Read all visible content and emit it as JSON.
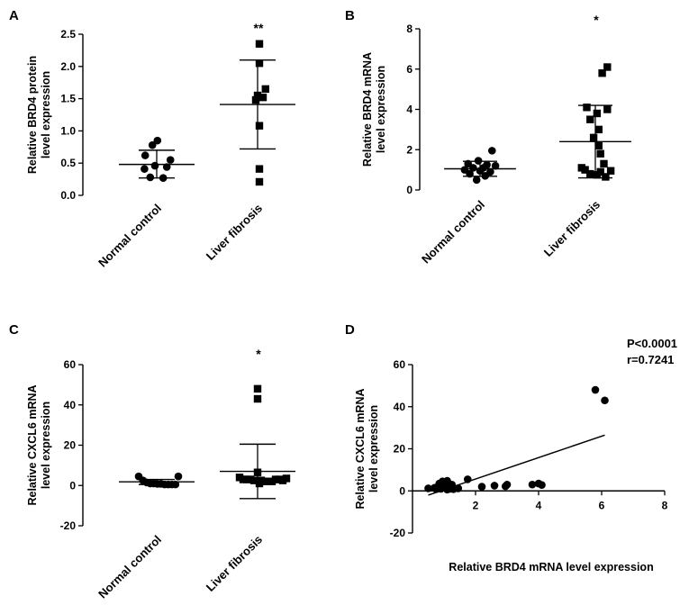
{
  "chart_data": [
    {
      "type": "scatter",
      "panel": "A",
      "title": "",
      "ylabel_lines": [
        "Relative BRD4 protein",
        "level expression"
      ],
      "categories": [
        "Normal control",
        "Liver fibrosis"
      ],
      "ylim": [
        0,
        2.5
      ],
      "yticks": [
        0.0,
        0.5,
        1.0,
        1.5,
        2.0,
        2.5
      ],
      "ytick_labels": [
        "0.0",
        "0.5",
        "1.0",
        "1.5",
        "2.0",
        "2.5"
      ],
      "series": [
        {
          "name": "Normal control",
          "marker": "circle",
          "values": [
            0.85,
            0.78,
            0.62,
            0.55,
            0.46,
            0.44,
            0.41,
            0.28,
            0.27
          ],
          "offsets": [
            0.02,
            -0.12,
            -0.32,
            0.38,
            -0.05,
            0.28,
            -0.34,
            -0.18,
            0.18
          ],
          "mean": 0.48,
          "sd_upper": 0.7,
          "sd_lower": 0.27
        },
        {
          "name": "Liver fibrosis",
          "marker": "square",
          "values": [
            2.35,
            2.05,
            1.65,
            1.55,
            1.52,
            1.48,
            1.08,
            0.41,
            0.21
          ],
          "offsets": [
            0.05,
            0.05,
            0.22,
            0.0,
            0.15,
            -0.05,
            0.05,
            0.05,
            0.05
          ],
          "mean": 1.41,
          "sd_upper": 2.1,
          "sd_lower": 0.72
        }
      ],
      "significance": "**"
    },
    {
      "type": "scatter",
      "panel": "B",
      "title": "",
      "ylabel_lines": [
        "Relative BRD4 mRNA",
        "level expression"
      ],
      "categories": [
        "Normal control",
        "Liver fibrosis"
      ],
      "ylim": [
        0,
        8
      ],
      "yticks": [
        0,
        2,
        4,
        6,
        8
      ],
      "ytick_labels": [
        "0",
        "2",
        "4",
        "6",
        "8"
      ],
      "series": [
        {
          "name": "Normal control",
          "marker": "circle",
          "values": [
            1.95,
            1.45,
            1.3,
            1.25,
            1.2,
            1.1,
            1.1,
            1.0,
            0.95,
            0.9,
            0.8,
            0.7,
            0.5
          ],
          "offsets": [
            0.35,
            -0.05,
            -0.35,
            0.2,
            0.45,
            -0.2,
            0.1,
            -0.45,
            0.0,
            0.3,
            -0.3,
            0.15,
            -0.1
          ],
          "mean": 1.05,
          "sd_upper": 1.42,
          "sd_lower": 0.68
        },
        {
          "name": "Liver fibrosis",
          "marker": "square",
          "values": [
            6.1,
            5.8,
            4.1,
            4.0,
            3.8,
            3.5,
            3.0,
            2.6,
            2.2,
            1.8,
            1.3,
            1.1,
            1.0,
            0.95,
            0.9,
            0.8,
            0.75,
            0.65
          ],
          "offsets": [
            0.35,
            0.2,
            -0.25,
            0.35,
            0.05,
            -0.15,
            0.1,
            -0.05,
            0.1,
            0.15,
            0.25,
            -0.4,
            -0.3,
            0.45,
            0.15,
            -0.15,
            0.05,
            0.3
          ],
          "mean": 2.4,
          "sd_upper": 4.2,
          "sd_lower": 0.6
        }
      ],
      "significance": "*"
    },
    {
      "type": "scatter",
      "panel": "C",
      "title": "",
      "ylabel_lines": [
        "Relative CXCL6 mRNA",
        "level expression"
      ],
      "categories": [
        "Normal control",
        "Liver fibrosis"
      ],
      "ylim": [
        -20,
        60
      ],
      "yticks": [
        -20,
        0,
        20,
        40,
        60
      ],
      "ytick_labels": [
        "-20",
        "0",
        "20",
        "40",
        "60"
      ],
      "series": [
        {
          "name": "Normal control",
          "marker": "circle",
          "values": [
            4.5,
            2.5,
            1.5,
            1.0,
            1.0,
            0.8,
            0.8,
            0.5,
            0.5,
            0.5,
            0.5,
            4.5
          ],
          "offsets": [
            -0.5,
            -0.38,
            -0.28,
            -0.18,
            -0.08,
            0.02,
            0.12,
            0.22,
            0.32,
            0.42,
            0.52,
            0.6
          ],
          "mean": 1.8,
          "sd_upper": 3.0,
          "sd_lower": 0.5
        },
        {
          "name": "Liver fibrosis",
          "marker": "square",
          "values": [
            48,
            43,
            6.5,
            4,
            3,
            3,
            3,
            2.5,
            2.5,
            2,
            2,
            2,
            3,
            3,
            2.5,
            3.5,
            1
          ],
          "offsets": [
            0.0,
            0.0,
            0.0,
            -0.5,
            -0.4,
            -0.3,
            -0.2,
            -0.1,
            0.1,
            0.2,
            0.3,
            0.4,
            0.5,
            0.6,
            0.7,
            0.8,
            0.05
          ],
          "mean": 7.0,
          "sd_upper": 20.5,
          "sd_lower": -6.5
        }
      ],
      "significance": "*"
    },
    {
      "type": "scatter",
      "panel": "D",
      "title": "",
      "xlabel": "Relative BRD4 mRNA level expression",
      "ylabel_lines": [
        "Relative CXCL6 mRNA",
        "level expression"
      ],
      "xlim": [
        0,
        8
      ],
      "ylim": [
        -20,
        60
      ],
      "xticks": [
        2,
        4,
        6,
        8
      ],
      "xtick_labels": [
        "2",
        "4",
        "6",
        "8"
      ],
      "yticks": [
        -20,
        0,
        20,
        40,
        60
      ],
      "ytick_labels": [
        "-20",
        "0",
        "20",
        "40",
        "60"
      ],
      "points": [
        [
          0.5,
          1.2
        ],
        [
          0.7,
          1.5
        ],
        [
          0.75,
          0.8
        ],
        [
          0.8,
          2.0
        ],
        [
          0.85,
          3.5
        ],
        [
          0.9,
          1.0
        ],
        [
          0.95,
          4.5
        ],
        [
          1.0,
          2.5
        ],
        [
          1.05,
          1.5
        ],
        [
          1.1,
          4.8
        ],
        [
          1.1,
          0.6
        ],
        [
          1.15,
          2.0
        ],
        [
          1.2,
          1.0
        ],
        [
          1.25,
          3.0
        ],
        [
          1.3,
          0.8
        ],
        [
          1.45,
          1.2
        ],
        [
          1.75,
          5.5
        ],
        [
          2.2,
          2.0
        ],
        [
          2.6,
          2.5
        ],
        [
          2.95,
          2.2
        ],
        [
          3.0,
          3.0
        ],
        [
          3.8,
          3.0
        ],
        [
          4.0,
          3.5
        ],
        [
          4.1,
          2.8
        ],
        [
          5.8,
          48
        ],
        [
          6.1,
          43
        ]
      ],
      "regression": {
        "x1": 0.5,
        "y1": -2.0,
        "x2": 6.1,
        "y2": 26.5
      },
      "annotations": [
        "P<0.0001",
        "r=0.7241"
      ]
    }
  ]
}
